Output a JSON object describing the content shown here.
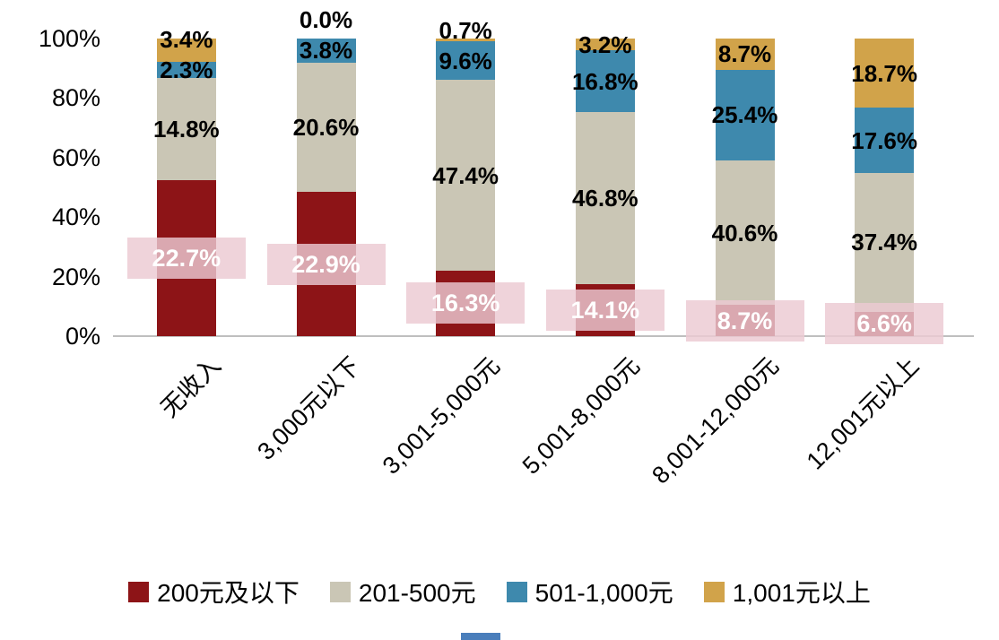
{
  "chart_data": {
    "type": "bar",
    "subtype": "stacked-column-normalized-100",
    "title": "",
    "xlabel": "",
    "ylabel": "",
    "categories": [
      "无收入",
      "3,000元以下",
      "3,001-5,000元",
      "5,001-8,000元",
      "8,001-12,000元",
      "12,001元以上"
    ],
    "series": [
      {
        "name": "200元及以下",
        "color": "#8d1417",
        "label_style": "highlight",
        "values": [
          22.7,
          22.9,
          16.3,
          14.1,
          8.7,
          6.6
        ]
      },
      {
        "name": "201-500元",
        "color": "#cac6b5",
        "label_style": "plain",
        "values": [
          14.8,
          20.6,
          47.4,
          46.8,
          40.6,
          37.4
        ]
      },
      {
        "name": "501-1,000元",
        "color": "#3e89ad",
        "label_style": "plain",
        "values": [
          2.3,
          3.8,
          9.6,
          16.8,
          25.4,
          17.6
        ]
      },
      {
        "name": "1,001元以上",
        "color": "#d1a34a",
        "label_style": "plain",
        "values": [
          3.4,
          0.0,
          0.7,
          3.2,
          8.7,
          18.7
        ]
      }
    ],
    "y_axis": {
      "tick_labels": [
        "0%",
        "20%",
        "40%",
        "60%",
        "80%",
        "100%"
      ],
      "min": 0,
      "max": 100
    },
    "grid": "off",
    "legend_position": "bottom",
    "normalization": "each column scaled so its four segments fill 0-100%",
    "highlight": {
      "background": "rgba(236,201,210,0.82)",
      "text_color": "#ffffff"
    },
    "label_suffix": "%"
  }
}
